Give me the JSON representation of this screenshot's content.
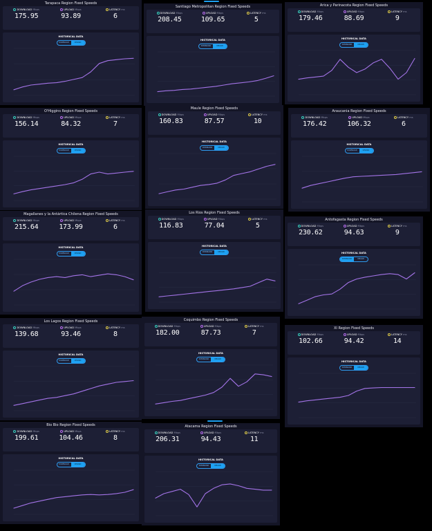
{
  "labels": {
    "download": "DOWNLOAD",
    "upload": "UPLOAD",
    "latency": "LATENCY",
    "mbps": "Mbps",
    "ms": "ms",
    "historical": "HISTORICAL DATA",
    "toggle_download": "DOWNLOAD",
    "toggle_upload": "UPLOAD"
  },
  "icons": {
    "download": "download-dot-icon",
    "upload": "upload-dot-icon",
    "latency": "latency-dot-icon"
  },
  "colors": {
    "background": "#141526",
    "card": "#1d1f35",
    "line": "#a474e8",
    "toggle": "#1da1f2",
    "download": "#39d2c0",
    "upload": "#b96ff0",
    "latency": "#e3d04a"
  },
  "regions": [
    {
      "title": "Tarapaca Region Fixed Speeds",
      "download": "175.95",
      "upload": "93.89",
      "latency": "6",
      "toggle_active": "upload",
      "trend": [
        0.12,
        0.18,
        0.22,
        0.24,
        0.26,
        0.27,
        0.3,
        0.34,
        0.38,
        0.5,
        0.68,
        0.74,
        0.76,
        0.78,
        0.79
      ]
    },
    {
      "title": "Santiago Metropolitan Region Fixed Speeds",
      "download": "208.45",
      "upload": "109.65",
      "latency": "5",
      "toggle_active": "upload",
      "trend": [
        0.1,
        0.12,
        0.13,
        0.15,
        0.16,
        0.18,
        0.2,
        0.22,
        0.25,
        0.28,
        0.3,
        0.32,
        0.35,
        0.4,
        0.46
      ]
    },
    {
      "title": "Arica y Parinacota Region Fixed Speeds",
      "download": "179.46",
      "upload": "88.69",
      "latency": "9",
      "toggle_active": "upload",
      "trend": [
        0.35,
        0.38,
        0.4,
        0.42,
        0.55,
        0.8,
        0.62,
        0.5,
        0.58,
        0.72,
        0.8,
        0.6,
        0.35,
        0.5,
        0.82
      ]
    },
    {
      "title": "O'Higgins Region Fixed Speeds",
      "download": "156.14",
      "upload": "84.32",
      "latency": "7",
      "toggle_active": "upload",
      "trend": [
        0.15,
        0.2,
        0.24,
        0.27,
        0.3,
        0.33,
        0.36,
        0.4,
        0.48,
        0.6,
        0.64,
        0.6,
        0.62,
        0.64,
        0.66
      ]
    },
    {
      "title": "Maule Region Fixed Speeds",
      "download": "160.83",
      "upload": "87.57",
      "latency": "10",
      "toggle_active": "upload",
      "trend": [
        0.12,
        0.16,
        0.2,
        0.22,
        0.26,
        0.3,
        0.32,
        0.35,
        0.42,
        0.52,
        0.56,
        0.6,
        0.66,
        0.72,
        0.76
      ]
    },
    {
      "title": "Araucania Region Fixed Speeds",
      "download": "176.42",
      "upload": "106.32",
      "latency": "6",
      "toggle_active": "upload",
      "trend": [
        0.3,
        0.36,
        0.4,
        0.44,
        0.48,
        0.52,
        0.55,
        0.56,
        0.57,
        0.58,
        0.59,
        0.6,
        0.62,
        0.64,
        0.66
      ]
    },
    {
      "title": "Magallanes y la Antártica Chilena Region Fixed Speeds",
      "download": "215.64",
      "upload": "173.99",
      "latency": "6",
      "toggle_active": "upload",
      "trend": [
        0.3,
        0.42,
        0.5,
        0.56,
        0.6,
        0.62,
        0.6,
        0.64,
        0.66,
        0.62,
        0.65,
        0.68,
        0.66,
        0.62,
        0.55
      ]
    },
    {
      "title": "Los Rios Region Fixed Speeds",
      "download": "116.83",
      "upload": "77.04",
      "latency": "5",
      "toggle_active": "upload",
      "trend": [
        0.12,
        0.14,
        0.16,
        0.18,
        0.2,
        0.22,
        0.24,
        0.26,
        0.28,
        0.3,
        0.33,
        0.36,
        0.44,
        0.52,
        0.48
      ]
    },
    {
      "title": "Antofagasta Region Fixed Speeds",
      "download": "230.62",
      "upload": "94.63",
      "latency": "9",
      "toggle_active": "download",
      "trend": [
        0.12,
        0.2,
        0.28,
        0.32,
        0.34,
        0.45,
        0.6,
        0.68,
        0.72,
        0.75,
        0.78,
        0.8,
        0.78,
        0.68,
        0.82
      ]
    },
    {
      "title": "Los Lagos Region Fixed Speeds",
      "download": "139.68",
      "upload": "93.46",
      "latency": "8",
      "toggle_active": "upload",
      "trend": [
        0.12,
        0.16,
        0.2,
        0.24,
        0.28,
        0.3,
        0.34,
        0.38,
        0.44,
        0.5,
        0.56,
        0.6,
        0.64,
        0.66,
        0.68
      ]
    },
    {
      "title": "Coquimbo Region Fixed Speeds",
      "download": "182.00",
      "upload": "87.73",
      "latency": "7",
      "toggle_active": "upload",
      "trend": [
        0.12,
        0.15,
        0.18,
        0.2,
        0.24,
        0.28,
        0.32,
        0.38,
        0.5,
        0.7,
        0.52,
        0.62,
        0.8,
        0.78,
        0.74
      ]
    },
    {
      "title": "XI Region Fixed Speeds",
      "download": "102.66",
      "upload": "94.42",
      "latency": "14",
      "toggle_active": "upload",
      "trend": [
        0.35,
        0.38,
        0.4,
        0.42,
        0.44,
        0.46,
        0.5,
        0.6,
        0.66,
        0.67,
        0.68,
        0.68,
        0.68,
        0.68,
        0.68
      ]
    },
    {
      "title": "Bio Bio Region Fixed Speeds",
      "download": "199.61",
      "upload": "104.46",
      "latency": "8",
      "toggle_active": "upload",
      "trend": [
        0.14,
        0.2,
        0.26,
        0.3,
        0.34,
        0.38,
        0.4,
        0.42,
        0.44,
        0.45,
        0.44,
        0.45,
        0.47,
        0.5,
        0.56
      ]
    },
    {
      "title": "Atacama Region Fixed Speeds",
      "download": "206.31",
      "upload": "94.43",
      "latency": "11",
      "toggle_active": "upload",
      "trend": [
        0.4,
        0.5,
        0.55,
        0.6,
        0.48,
        0.2,
        0.5,
        0.62,
        0.7,
        0.72,
        0.68,
        0.62,
        0.6,
        0.58,
        0.58
      ]
    }
  ]
}
